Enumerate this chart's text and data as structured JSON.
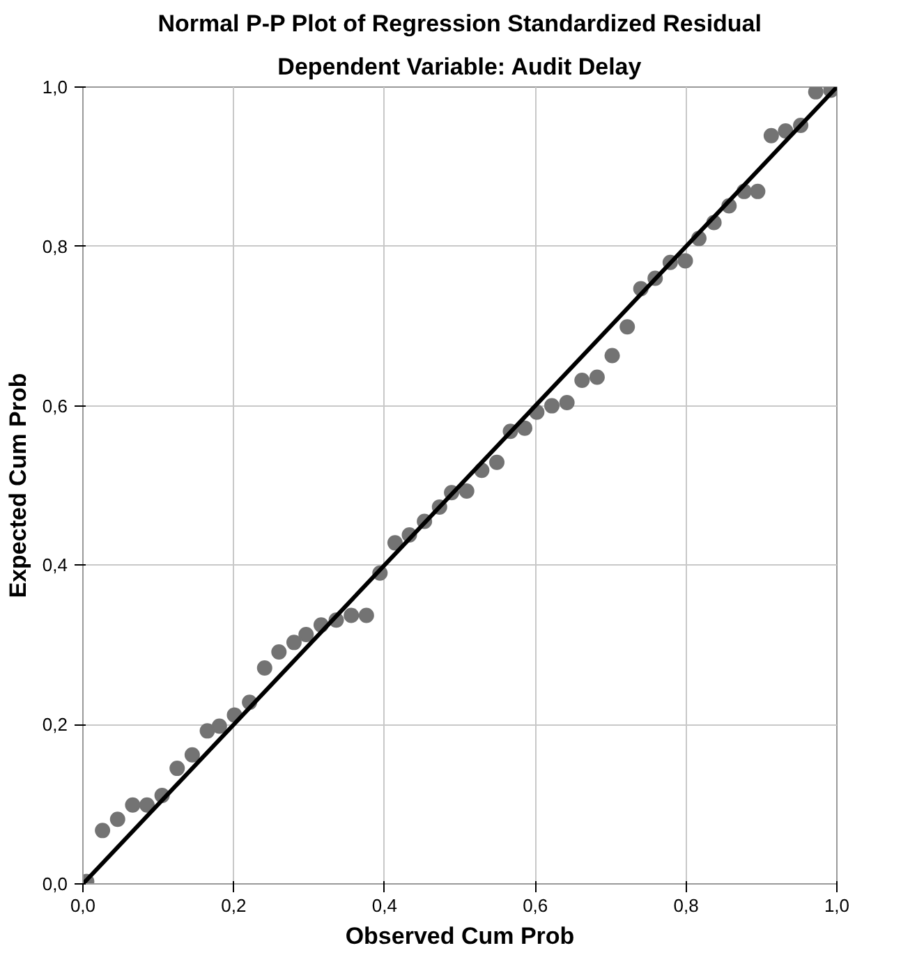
{
  "chart_data": {
    "type": "scatter",
    "title": "Normal P-P Plot of Regression Standardized Residual",
    "subtitle": "Dependent Variable: Audit Delay",
    "xlabel": "Observed Cum Prob",
    "ylabel": "Expected Cum Prob",
    "xlim": [
      0,
      1
    ],
    "ylim": [
      0,
      1
    ],
    "xticks": [
      {
        "value": 0,
        "label": "0,0"
      },
      {
        "value": 0.2,
        "label": "0,2"
      },
      {
        "value": 0.4,
        "label": "0,4"
      },
      {
        "value": 0.6,
        "label": "0,6"
      },
      {
        "value": 0.8,
        "label": "0,8"
      },
      {
        "value": 1,
        "label": "1,0"
      }
    ],
    "yticks": [
      {
        "value": 0,
        "label": "0,0"
      },
      {
        "value": 0.2,
        "label": "0,2"
      },
      {
        "value": 0.4,
        "label": "0,4"
      },
      {
        "value": 0.6,
        "label": "0,6"
      },
      {
        "value": 0.8,
        "label": "0,8"
      },
      {
        "value": 1,
        "label": "1,0"
      }
    ],
    "grid": true,
    "series": [
      {
        "marker": "circle",
        "color": "#737373",
        "x": [
          0.005,
          0.026,
          0.046,
          0.066,
          0.085,
          0.105,
          0.125,
          0.145,
          0.165,
          0.181,
          0.201,
          0.221,
          0.241,
          0.26,
          0.28,
          0.296,
          0.316,
          0.336,
          0.356,
          0.376,
          0.394,
          0.414,
          0.433,
          0.453,
          0.473,
          0.489,
          0.509,
          0.529,
          0.549,
          0.567,
          0.586,
          0.602,
          0.622,
          0.642,
          0.662,
          0.682,
          0.702,
          0.722,
          0.74,
          0.759,
          0.779,
          0.799,
          0.817,
          0.837,
          0.857,
          0.877,
          0.895,
          0.913,
          0.932,
          0.952,
          0.972,
          0.992
        ],
        "values": [
          0.003,
          0.067,
          0.081,
          0.099,
          0.099,
          0.111,
          0.145,
          0.162,
          0.192,
          0.198,
          0.212,
          0.228,
          0.271,
          0.291,
          0.303,
          0.313,
          0.325,
          0.331,
          0.337,
          0.337,
          0.39,
          0.428,
          0.438,
          0.455,
          0.473,
          0.491,
          0.493,
          0.519,
          0.529,
          0.568,
          0.572,
          0.592,
          0.6,
          0.604,
          0.632,
          0.636,
          0.663,
          0.699,
          0.747,
          0.76,
          0.78,
          0.782,
          0.81,
          0.83,
          0.851,
          0.869,
          0.869,
          0.939,
          0.945,
          0.952,
          0.994,
          0.996
        ]
      },
      {
        "type": "line",
        "marker": "none",
        "color": "#000000",
        "x": [
          0,
          1
        ],
        "values": [
          0,
          1
        ]
      }
    ]
  }
}
